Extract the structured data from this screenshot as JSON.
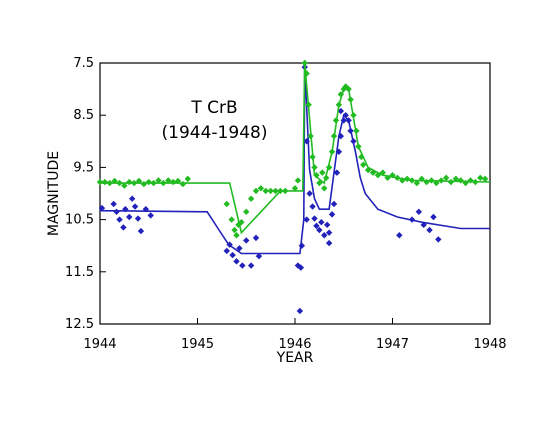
{
  "chart_data": {
    "type": "scatter",
    "title": "",
    "xlabel": "YEAR",
    "ylabel": "MAGNITUDE",
    "xlim": [
      1944,
      1948
    ],
    "ylim": [
      7.5,
      12.5
    ],
    "y_inverted": true,
    "x_ticks": [
      1944,
      1945,
      1946,
      1947,
      1948
    ],
    "x_tick_labels": [
      "1944",
      "1945",
      "1946",
      "1947",
      "1948"
    ],
    "y_ticks": [
      7.5,
      8.5,
      9.5,
      10.5,
      11.5,
      12.5
    ],
    "y_tick_labels": [
      "7.5",
      "8.5",
      "9.5",
      "10.5",
      "11.5",
      "12.5"
    ],
    "grid": false,
    "legend": "none",
    "annotations": [
      {
        "text": "T CrB",
        "x": 1945.0,
        "y": 8.5
      },
      {
        "text": "(1944-1948)",
        "x": 1945.0,
        "y": 8.82
      }
    ],
    "series": [
      {
        "color": "#2222bb",
        "points": [
          [
            1944.02,
            10.28
          ],
          [
            1944.14,
            10.2
          ],
          [
            1944.17,
            10.35
          ],
          [
            1944.2,
            10.5
          ],
          [
            1944.24,
            10.65
          ],
          [
            1944.26,
            10.3
          ],
          [
            1944.3,
            10.45
          ],
          [
            1944.33,
            10.1
          ],
          [
            1944.36,
            10.25
          ],
          [
            1944.39,
            10.48
          ],
          [
            1944.42,
            10.72
          ],
          [
            1944.47,
            10.3
          ],
          [
            1944.52,
            10.42
          ],
          [
            1945.3,
            11.1
          ],
          [
            1945.33,
            10.98
          ],
          [
            1945.36,
            11.18
          ],
          [
            1945.4,
            11.3
          ],
          [
            1945.43,
            11.05
          ],
          [
            1945.46,
            11.38
          ],
          [
            1945.5,
            10.9
          ],
          [
            1945.55,
            11.38
          ],
          [
            1945.6,
            10.85
          ],
          [
            1945.63,
            11.2
          ],
          [
            1946.03,
            11.38
          ],
          [
            1946.06,
            11.42
          ],
          [
            1946.05,
            12.25
          ],
          [
            1946.07,
            11.0
          ],
          [
            1946.1,
            7.58
          ],
          [
            1946.12,
            9.0
          ],
          [
            1946.15,
            10.0
          ],
          [
            1946.18,
            10.25
          ],
          [
            1946.2,
            10.48
          ],
          [
            1946.22,
            10.62
          ],
          [
            1946.25,
            10.7
          ],
          [
            1946.27,
            10.55
          ],
          [
            1946.3,
            10.8
          ],
          [
            1946.33,
            10.6
          ],
          [
            1946.35,
            10.75
          ],
          [
            1946.38,
            10.4
          ],
          [
            1946.4,
            10.2
          ],
          [
            1946.43,
            9.6
          ],
          [
            1946.45,
            9.2
          ],
          [
            1946.47,
            8.9
          ],
          [
            1946.5,
            8.6
          ],
          [
            1946.52,
            8.5
          ],
          [
            1946.55,
            8.6
          ],
          [
            1946.57,
            8.8
          ],
          [
            1946.6,
            9.0
          ],
          [
            1946.12,
            10.5
          ],
          [
            1946.35,
            10.95
          ],
          [
            1946.47,
            8.42
          ],
          [
            1947.07,
            10.8
          ],
          [
            1947.2,
            10.5
          ],
          [
            1947.27,
            10.35
          ],
          [
            1947.32,
            10.6
          ],
          [
            1947.38,
            10.7
          ],
          [
            1947.42,
            10.45
          ],
          [
            1947.47,
            10.88
          ]
        ],
        "trend": [
          [
            1944.0,
            10.33
          ],
          [
            1945.1,
            10.35
          ],
          [
            1945.22,
            10.7
          ],
          [
            1945.32,
            10.98
          ],
          [
            1945.45,
            11.15
          ],
          [
            1946.05,
            11.15
          ],
          [
            1946.09,
            10.5
          ],
          [
            1946.1,
            7.55
          ],
          [
            1946.15,
            9.55
          ],
          [
            1946.2,
            10.1
          ],
          [
            1946.25,
            10.3
          ],
          [
            1946.35,
            10.3
          ],
          [
            1946.4,
            9.6
          ],
          [
            1946.45,
            8.9
          ],
          [
            1946.5,
            8.5
          ],
          [
            1946.55,
            8.6
          ],
          [
            1946.62,
            9.2
          ],
          [
            1946.67,
            9.7
          ],
          [
            1946.72,
            10.0
          ],
          [
            1946.85,
            10.3
          ],
          [
            1947.05,
            10.45
          ],
          [
            1947.3,
            10.55
          ],
          [
            1947.7,
            10.67
          ],
          [
            1948.0,
            10.67
          ]
        ]
      },
      {
        "color": "#22bb22",
        "points": [
          [
            1944.0,
            9.78
          ],
          [
            1944.05,
            9.78
          ],
          [
            1944.1,
            9.8
          ],
          [
            1944.15,
            9.76
          ],
          [
            1944.2,
            9.8
          ],
          [
            1944.25,
            9.85
          ],
          [
            1944.3,
            9.78
          ],
          [
            1944.35,
            9.8
          ],
          [
            1944.4,
            9.76
          ],
          [
            1944.45,
            9.82
          ],
          [
            1944.5,
            9.78
          ],
          [
            1944.55,
            9.8
          ],
          [
            1944.6,
            9.75
          ],
          [
            1944.65,
            9.8
          ],
          [
            1944.7,
            9.75
          ],
          [
            1944.75,
            9.78
          ],
          [
            1944.8,
            9.76
          ],
          [
            1944.85,
            9.82
          ],
          [
            1944.9,
            9.72
          ],
          [
            1945.3,
            10.2
          ],
          [
            1945.35,
            10.5
          ],
          [
            1945.38,
            10.7
          ],
          [
            1945.4,
            10.8
          ],
          [
            1945.42,
            10.6
          ],
          [
            1945.45,
            10.55
          ],
          [
            1945.5,
            10.35
          ],
          [
            1945.55,
            10.1
          ],
          [
            1945.6,
            9.95
          ],
          [
            1945.65,
            9.9
          ],
          [
            1945.7,
            9.95
          ],
          [
            1945.75,
            9.95
          ],
          [
            1945.8,
            9.95
          ],
          [
            1945.85,
            9.95
          ],
          [
            1945.9,
            9.95
          ],
          [
            1946.0,
            9.9
          ],
          [
            1946.03,
            9.75
          ],
          [
            1946.1,
            7.5
          ],
          [
            1946.12,
            7.7
          ],
          [
            1946.14,
            8.3
          ],
          [
            1946.16,
            8.9
          ],
          [
            1946.18,
            9.3
          ],
          [
            1946.2,
            9.5
          ],
          [
            1946.22,
            9.65
          ],
          [
            1946.25,
            9.8
          ],
          [
            1946.28,
            9.6
          ],
          [
            1946.3,
            9.9
          ],
          [
            1946.32,
            9.7
          ],
          [
            1946.35,
            9.5
          ],
          [
            1946.38,
            9.2
          ],
          [
            1946.4,
            8.9
          ],
          [
            1946.42,
            8.6
          ],
          [
            1946.45,
            8.3
          ],
          [
            1946.47,
            8.1
          ],
          [
            1946.5,
            8.0
          ],
          [
            1946.52,
            7.95
          ],
          [
            1946.55,
            8.0
          ],
          [
            1946.57,
            8.2
          ],
          [
            1946.6,
            8.5
          ],
          [
            1946.63,
            8.8
          ],
          [
            1946.65,
            9.1
          ],
          [
            1946.68,
            9.3
          ],
          [
            1946.7,
            9.45
          ],
          [
            1946.75,
            9.55
          ],
          [
            1946.8,
            9.6
          ],
          [
            1946.85,
            9.65
          ],
          [
            1946.9,
            9.6
          ],
          [
            1946.95,
            9.7
          ],
          [
            1947.0,
            9.65
          ],
          [
            1947.05,
            9.7
          ],
          [
            1947.1,
            9.75
          ],
          [
            1947.15,
            9.72
          ],
          [
            1947.2,
            9.75
          ],
          [
            1947.25,
            9.8
          ],
          [
            1947.3,
            9.72
          ],
          [
            1947.35,
            9.78
          ],
          [
            1947.4,
            9.75
          ],
          [
            1947.45,
            9.8
          ],
          [
            1947.5,
            9.75
          ],
          [
            1947.55,
            9.7
          ],
          [
            1947.6,
            9.78
          ],
          [
            1947.65,
            9.72
          ],
          [
            1947.7,
            9.75
          ],
          [
            1947.75,
            9.8
          ],
          [
            1947.8,
            9.75
          ],
          [
            1947.85,
            9.78
          ],
          [
            1947.9,
            9.7
          ],
          [
            1947.95,
            9.72
          ]
        ],
        "trend": [
          [
            1944.0,
            9.8
          ],
          [
            1945.33,
            9.8
          ],
          [
            1945.45,
            10.75
          ],
          [
            1945.85,
            9.95
          ],
          [
            1946.08,
            9.95
          ],
          [
            1946.1,
            7.5
          ],
          [
            1946.2,
            9.65
          ],
          [
            1946.3,
            9.8
          ],
          [
            1946.38,
            9.2
          ],
          [
            1946.45,
            8.3
          ],
          [
            1946.5,
            8.0
          ],
          [
            1946.55,
            8.0
          ],
          [
            1946.65,
            9.1
          ],
          [
            1946.75,
            9.5
          ],
          [
            1946.9,
            9.65
          ],
          [
            1947.2,
            9.75
          ],
          [
            1948.0,
            9.78
          ]
        ]
      }
    ]
  }
}
